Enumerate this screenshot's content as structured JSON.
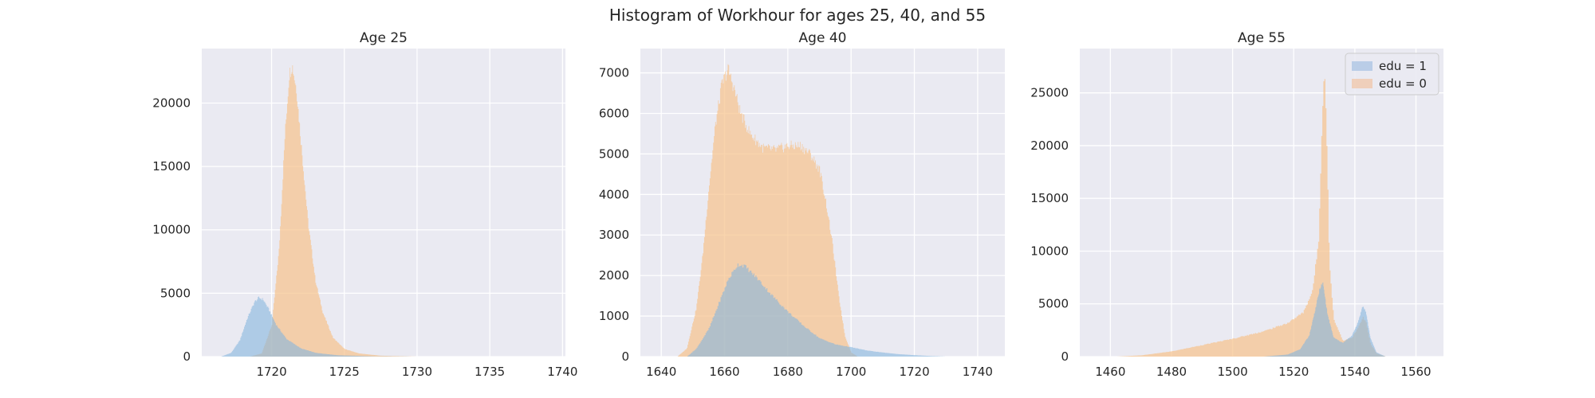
{
  "chart_data": {
    "type": "bar",
    "suptitle": "Histogram of Workhour for ages 25, 40, and 55",
    "style": {
      "background": "#eaeaf2",
      "grid": true,
      "grid_color": "#ffffff"
    },
    "legend": {
      "placement": "upper-right",
      "entries": [
        {
          "label": "edu = 1",
          "color": "#a9c3e3"
        },
        {
          "label": "edu = 0",
          "color": "#f0c5a8"
        }
      ]
    },
    "series_colors": {
      "edu = 1": "#86b6de",
      "edu = 0": "#f6c48e"
    },
    "panels": [
      {
        "title": "Age 25",
        "xlim": [
          1715.2,
          1740.2
        ],
        "ylim": [
          0,
          24300
        ],
        "xticks": [
          1720,
          1725,
          1730,
          1735,
          1740
        ],
        "yticks": [
          0,
          5000,
          10000,
          15000,
          20000
        ],
        "series": [
          {
            "name": "edu = 1",
            "type": "density",
            "points": [
              [
                1716.5,
                0
              ],
              [
                1717.2,
                300
              ],
              [
                1717.8,
                1300
              ],
              [
                1718.3,
                3000
              ],
              [
                1718.8,
                4300
              ],
              [
                1719.1,
                4650
              ],
              [
                1719.4,
                4500
              ],
              [
                1719.8,
                3700
              ],
              [
                1720.3,
                2500
              ],
              [
                1721.0,
                1400
              ],
              [
                1722.0,
                650
              ],
              [
                1723.0,
                300
              ],
              [
                1724.5,
                110
              ],
              [
                1727,
                20
              ],
              [
                1730,
                0
              ]
            ]
          },
          {
            "name": "edu = 0",
            "type": "density",
            "points": [
              [
                1718.5,
                0
              ],
              [
                1719.3,
                250
              ],
              [
                1720.0,
                2500
              ],
              [
                1720.5,
                8500
              ],
              [
                1720.9,
                17500
              ],
              [
                1721.2,
                22300
              ],
              [
                1721.4,
                23000
              ],
              [
                1721.7,
                21000
              ],
              [
                1722.0,
                17000
              ],
              [
                1722.5,
                10500
              ],
              [
                1723.0,
                6000
              ],
              [
                1723.5,
                3500
              ],
              [
                1724.2,
                1500
              ],
              [
                1725.0,
                600
              ],
              [
                1726.0,
                250
              ],
              [
                1727.5,
                70
              ],
              [
                1730,
                0
              ]
            ]
          }
        ]
      },
      {
        "title": "Age 40",
        "xlim": [
          1633.4,
          1748.6
        ],
        "ylim": [
          0,
          7600
        ],
        "xticks": [
          1640,
          1660,
          1680,
          1700,
          1720,
          1740
        ],
        "yticks": [
          0,
          1000,
          2000,
          3000,
          4000,
          5000,
          6000,
          7000
        ],
        "series": [
          {
            "name": "edu = 1",
            "type": "density",
            "points": [
              [
                1648,
                0
              ],
              [
                1651,
                200
              ],
              [
                1655,
                700
              ],
              [
                1658,
                1300
              ],
              [
                1661,
                1900
              ],
              [
                1664,
                2270
              ],
              [
                1666,
                2250
              ],
              [
                1670,
                1950
              ],
              [
                1675,
                1500
              ],
              [
                1680,
                1100
              ],
              [
                1685,
                750
              ],
              [
                1690,
                450
              ],
              [
                1695,
                300
              ],
              [
                1700,
                230
              ],
              [
                1705,
                150
              ],
              [
                1710,
                100
              ],
              [
                1715,
                60
              ],
              [
                1720,
                35
              ],
              [
                1725,
                15
              ],
              [
                1730,
                0
              ]
            ]
          },
          {
            "name": "edu = 0",
            "type": "density",
            "points": [
              [
                1645,
                0
              ],
              [
                1648,
                200
              ],
              [
                1651,
                1200
              ],
              [
                1653,
                2500
              ],
              [
                1655,
                4200
              ],
              [
                1657,
                5700
              ],
              [
                1659,
                6700
              ],
              [
                1661,
                7100
              ],
              [
                1663,
                6600
              ],
              [
                1665,
                6000
              ],
              [
                1668,
                5500
              ],
              [
                1672,
                5150
              ],
              [
                1676,
                5100
              ],
              [
                1680,
                5200
              ],
              [
                1684,
                5200
              ],
              [
                1687,
                5000
              ],
              [
                1690,
                4600
              ],
              [
                1692,
                3800
              ],
              [
                1694,
                2800
              ],
              [
                1696,
                1500
              ],
              [
                1698,
                500
              ],
              [
                1700,
                100
              ],
              [
                1702,
                0
              ]
            ]
          }
        ]
      },
      {
        "title": "Age 55",
        "xlim": [
          1450,
          1569
        ],
        "ylim": [
          0,
          29200
        ],
        "xticks": [
          1460,
          1480,
          1500,
          1520,
          1540,
          1560
        ],
        "yticks": [
          0,
          5000,
          10000,
          15000,
          20000,
          25000
        ],
        "series": [
          {
            "name": "edu = 1",
            "type": "density",
            "points": [
              [
                1510,
                0
              ],
              [
                1518,
                200
              ],
              [
                1522,
                700
              ],
              [
                1525,
                2000
              ],
              [
                1527,
                4500
              ],
              [
                1528.5,
                6500
              ],
              [
                1529.5,
                7000
              ],
              [
                1531,
                4000
              ],
              [
                1533,
                1800
              ],
              [
                1536,
                1300
              ],
              [
                1539,
                2000
              ],
              [
                1541,
                3300
              ],
              [
                1542.5,
                4800
              ],
              [
                1543.5,
                4300
              ],
              [
                1545,
                1800
              ],
              [
                1547,
                400
              ],
              [
                1550,
                0
              ]
            ]
          },
          {
            "name": "edu = 0",
            "type": "density",
            "points": [
              [
                1462,
                0
              ],
              [
                1470,
                120
              ],
              [
                1480,
                500
              ],
              [
                1490,
                1100
              ],
              [
                1500,
                1700
              ],
              [
                1510,
                2400
              ],
              [
                1518,
                3200
              ],
              [
                1523,
                4200
              ],
              [
                1526,
                6200
              ],
              [
                1528,
                11000
              ],
              [
                1529,
                21000
              ],
              [
                1529.8,
                27500
              ],
              [
                1530.6,
                22000
              ],
              [
                1531.5,
                9000
              ],
              [
                1533,
                3500
              ],
              [
                1536,
                1500
              ],
              [
                1539,
                1800
              ],
              [
                1541,
                2800
              ],
              [
                1542.5,
                3700
              ],
              [
                1543.5,
                3300
              ],
              [
                1545,
                1200
              ],
              [
                1547,
                300
              ],
              [
                1550,
                0
              ]
            ]
          }
        ]
      }
    ]
  }
}
